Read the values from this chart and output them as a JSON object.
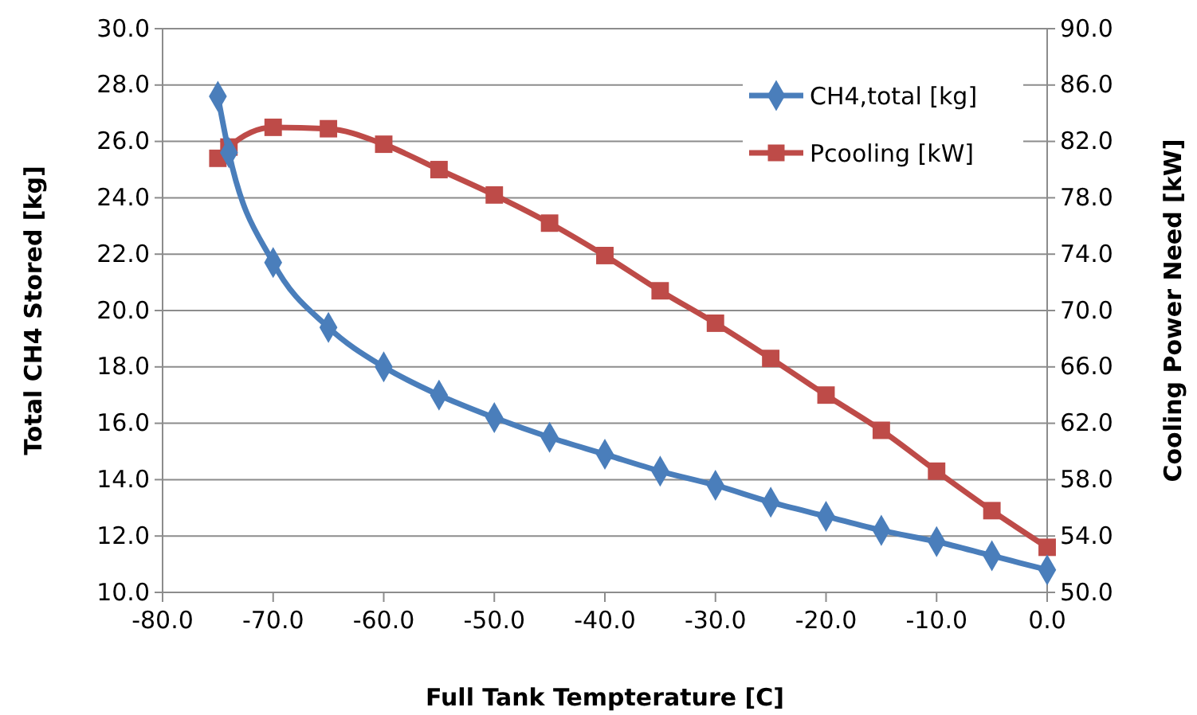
{
  "chart_data": {
    "type": "line",
    "xlabel": "Full Tank Tempterature [C]",
    "ylabel": "Total CH4 Stored [kg]",
    "y2label": "Cooling Power Need [kW]",
    "xlim": [
      -80,
      0
    ],
    "xticks": [
      {
        "value": -80,
        "label": "-80.0"
      },
      {
        "value": -70,
        "label": "-70.0"
      },
      {
        "value": -60,
        "label": "-60.0"
      },
      {
        "value": -50,
        "label": "-50.0"
      },
      {
        "value": -40,
        "label": "-40.0"
      },
      {
        "value": -30,
        "label": "-30.0"
      },
      {
        "value": -20,
        "label": "-20.0"
      },
      {
        "value": -10,
        "label": "-10.0"
      },
      {
        "value": 0,
        "label": "0.0"
      }
    ],
    "ylim": [
      10,
      30
    ],
    "yticks": [
      {
        "value": 10,
        "label": "10.0"
      },
      {
        "value": 12,
        "label": "12.0"
      },
      {
        "value": 14,
        "label": "14.0"
      },
      {
        "value": 16,
        "label": "16.0"
      },
      {
        "value": 18,
        "label": "18.0"
      },
      {
        "value": 20,
        "label": "20.0"
      },
      {
        "value": 22,
        "label": "22.0"
      },
      {
        "value": 24,
        "label": "24.0"
      },
      {
        "value": 26,
        "label": "26.0"
      },
      {
        "value": 28,
        "label": "28.0"
      },
      {
        "value": 30,
        "label": "30.0"
      }
    ],
    "y2lim": [
      50,
      90
    ],
    "y2ticks": [
      {
        "value": 50,
        "label": "50.0"
      },
      {
        "value": 54,
        "label": "54.0"
      },
      {
        "value": 58,
        "label": "58.0"
      },
      {
        "value": 62,
        "label": "62.0"
      },
      {
        "value": 66,
        "label": "66.0"
      },
      {
        "value": 70,
        "label": "70.0"
      },
      {
        "value": 74,
        "label": "74.0"
      },
      {
        "value": 78,
        "label": "78.0"
      },
      {
        "value": 82,
        "label": "82.0"
      },
      {
        "value": 86,
        "label": "86.0"
      },
      {
        "value": 90,
        "label": "90.0"
      }
    ],
    "grid": "y",
    "legend": "top right",
    "line_style": "solid",
    "x": [
      -75,
      -74,
      -70,
      -65,
      -60,
      -55,
      -50,
      -45,
      -40,
      -35,
      -30,
      -25,
      -20,
      -15,
      -10,
      -5,
      0
    ],
    "series": [
      {
        "name": "CH4,total [kg]",
        "color": "#4a7ebb",
        "marker": "diamond",
        "values": [
          27.6,
          25.6,
          21.7,
          19.4,
          18.0,
          17.0,
          16.2,
          15.5,
          14.9,
          14.3,
          13.8,
          13.2,
          12.7,
          12.2,
          11.8,
          11.3,
          10.8
        ]
      },
      {
        "name": "Pcooling [kW]",
        "color": "#be4b48",
        "marker": "square",
        "axis": "y2",
        "values": [
          80.8,
          81.6,
          83.0,
          82.9,
          81.8,
          80.0,
          78.2,
          76.2,
          73.9,
          71.4,
          69.1,
          66.6,
          64.0,
          61.5,
          58.6,
          55.8,
          53.2
        ]
      }
    ]
  }
}
